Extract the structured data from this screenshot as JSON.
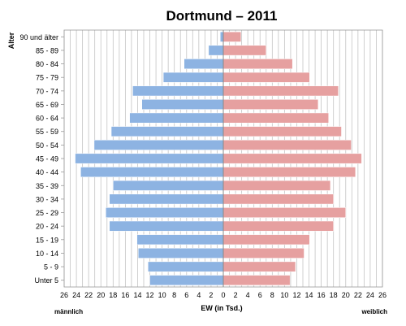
{
  "chart_data": {
    "type": "bar",
    "title": "Dortmund – 2011",
    "xlabel": "EW (in Tsd.)",
    "ylabel": "Alter",
    "left_label": "männlich",
    "right_label": "weiblich",
    "xlim": [
      -26,
      26
    ],
    "xticks": [
      "26",
      "24",
      "22",
      "20",
      "18",
      "16",
      "14",
      "12",
      "10",
      "8",
      "6",
      "4",
      "2",
      "0",
      "2",
      "4",
      "6",
      "8",
      "10",
      "12",
      "14",
      "16",
      "18",
      "20",
      "22",
      "24",
      "26"
    ],
    "categories": [
      "Unter 5",
      "5 - 9",
      "10 - 14",
      "15 - 19",
      "20 - 24",
      "25 - 29",
      "30 - 34",
      "35 - 39",
      "40 - 44",
      "45 - 49",
      "50 - 54",
      "55 - 59",
      "60 - 64",
      "65 - 69",
      "70 - 74",
      "75 - 79",
      "80 - 84",
      "85 - 89",
      "90 und älter"
    ],
    "series": [
      {
        "name": "männlich",
        "color": "#8db3e2",
        "values": [
          12.0,
          12.3,
          13.9,
          14.1,
          18.6,
          19.2,
          18.6,
          18.0,
          23.3,
          24.2,
          21.1,
          18.3,
          15.3,
          13.3,
          14.8,
          9.8,
          6.4,
          2.4,
          0.5
        ]
      },
      {
        "name": "weiblich",
        "color": "#e6a0a0",
        "values": [
          10.9,
          11.8,
          13.2,
          14.1,
          18.0,
          20.0,
          18.0,
          17.5,
          21.6,
          22.6,
          20.9,
          19.3,
          17.2,
          15.5,
          18.8,
          14.1,
          11.3,
          7.0,
          2.9
        ]
      }
    ],
    "grid": true,
    "legend": "none"
  }
}
